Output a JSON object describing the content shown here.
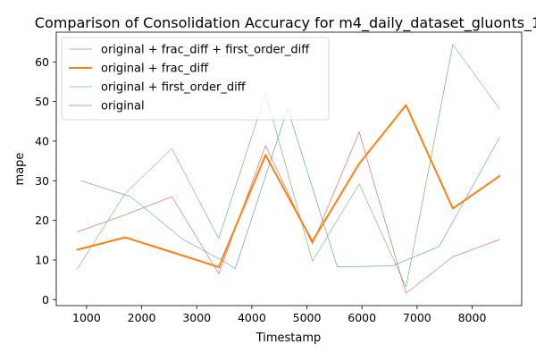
{
  "chart_data": {
    "type": "line",
    "title": "Comparison of Consolidation Accuracy for m4_daily_dataset_gluonts_1",
    "xlabel": "Timestamp",
    "ylabel": "mape",
    "xlim": [
      450,
      8900
    ],
    "ylim": [
      -1.5,
      67.5
    ],
    "x_ticks": [
      1000,
      2000,
      3000,
      4000,
      5000,
      6000,
      7000,
      8000
    ],
    "y_ticks": [
      0,
      10,
      20,
      30,
      40,
      50,
      60
    ],
    "grid": false,
    "legend_position": "top-left",
    "series": [
      {
        "name": "original + frac_diff + first_order_diff",
        "color": "#1f77b4",
        "linewidth": 0.5,
        "x": [
          900,
          1800,
          2750,
          3450,
          3700,
          4650,
          5550,
          6550,
          7400,
          8500
        ],
        "y": [
          30.0,
          26.0,
          15.2,
          10.0,
          7.8,
          48.2,
          8.3,
          8.5,
          13.4,
          41.0
        ]
      },
      {
        "name": "original + frac_diff",
        "color": "#ff7f0e",
        "linewidth": 2,
        "x": [
          830,
          1700,
          2550,
          3400,
          4250,
          5100,
          5950,
          6800,
          7650,
          8500
        ],
        "y": [
          12.6,
          15.7,
          12.0,
          8.2,
          36.5,
          14.7,
          34.3,
          49.1,
          23.0,
          31.2
        ]
      },
      {
        "name": "original + first_order_diff",
        "color": "#2ca02c",
        "linewidth": 0.5,
        "x": [
          830,
          1700,
          2550,
          3400,
          4250,
          5100,
          5950,
          6800,
          7650,
          8500
        ],
        "y": [
          7.7,
          26.8,
          38.1,
          15.4,
          52.0,
          9.7,
          29.2,
          3.2,
          64.4,
          48.1
        ]
      },
      {
        "name": "original",
        "color": "#d62728",
        "linewidth": 0.5,
        "x": [
          830,
          1700,
          2550,
          3400,
          4250,
          5100,
          5950,
          6800,
          7650,
          8500
        ],
        "y": [
          17.1,
          21.4,
          26.0,
          6.5,
          38.9,
          14.0,
          42.3,
          1.6,
          10.8,
          15.2
        ]
      }
    ]
  }
}
